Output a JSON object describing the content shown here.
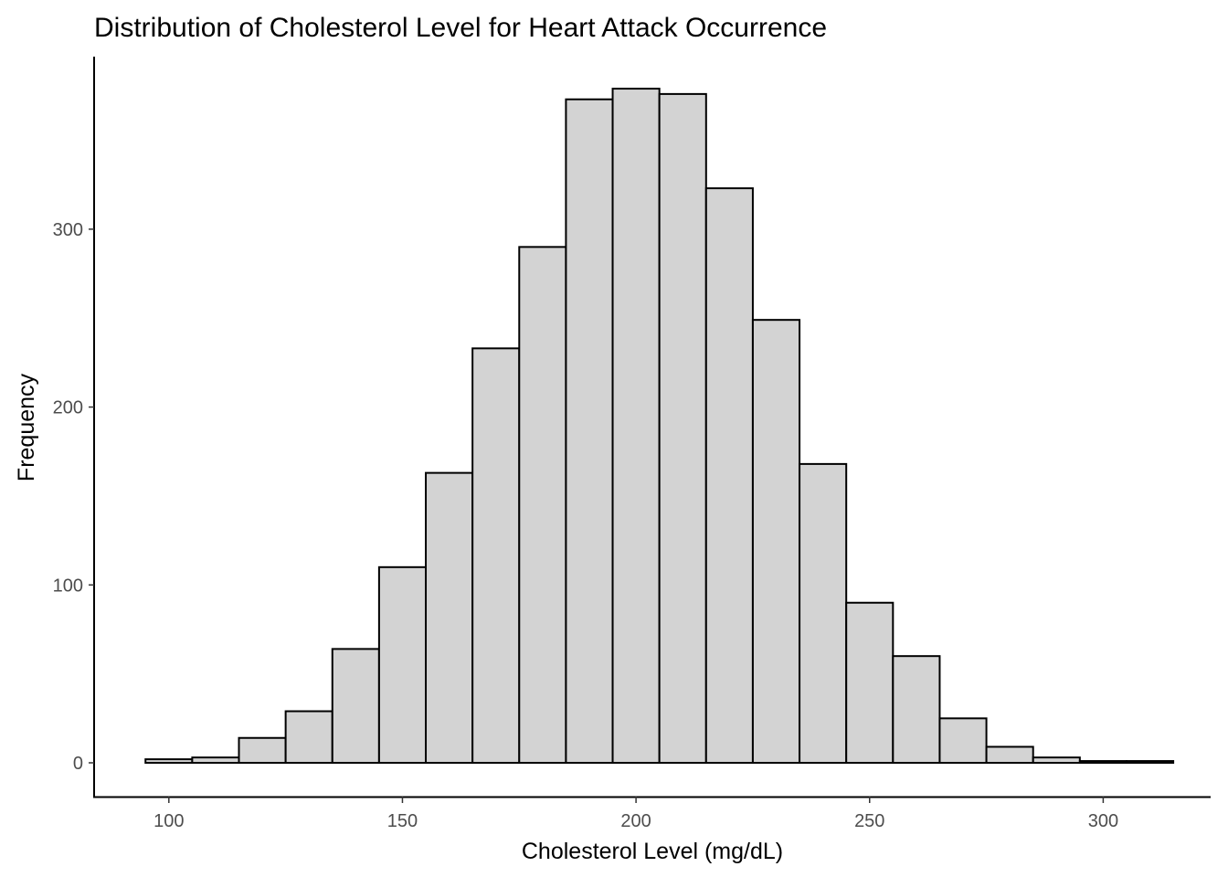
{
  "chart_data": {
    "type": "bar",
    "title": "Distribution of Cholesterol Level for Heart Attack Occurrence",
    "xlabel": "Cholesterol Level (mg/dL)",
    "ylabel": "Frequency",
    "bin_width": 10,
    "bins": [
      {
        "x0": 95,
        "x1": 105,
        "count": 2
      },
      {
        "x0": 105,
        "x1": 115,
        "count": 3
      },
      {
        "x0": 115,
        "x1": 125,
        "count": 14
      },
      {
        "x0": 125,
        "x1": 135,
        "count": 29
      },
      {
        "x0": 135,
        "x1": 145,
        "count": 64
      },
      {
        "x0": 145,
        "x1": 155,
        "count": 110
      },
      {
        "x0": 155,
        "x1": 165,
        "count": 163
      },
      {
        "x0": 165,
        "x1": 175,
        "count": 233
      },
      {
        "x0": 175,
        "x1": 185,
        "count": 290
      },
      {
        "x0": 185,
        "x1": 195,
        "count": 373
      },
      {
        "x0": 195,
        "x1": 205,
        "count": 379
      },
      {
        "x0": 205,
        "x1": 215,
        "count": 376
      },
      {
        "x0": 215,
        "x1": 225,
        "count": 323
      },
      {
        "x0": 225,
        "x1": 235,
        "count": 249
      },
      {
        "x0": 235,
        "x1": 245,
        "count": 168
      },
      {
        "x0": 245,
        "x1": 255,
        "count": 90
      },
      {
        "x0": 255,
        "x1": 265,
        "count": 60
      },
      {
        "x0": 265,
        "x1": 275,
        "count": 25
      },
      {
        "x0": 275,
        "x1": 285,
        "count": 9
      },
      {
        "x0": 285,
        "x1": 295,
        "count": 3
      },
      {
        "x0": 295,
        "x1": 305,
        "count": 1
      },
      {
        "x0": 305,
        "x1": 315,
        "count": 1
      }
    ],
    "xlim": [
      84,
      323
    ],
    "ylim": [
      -19,
      397
    ],
    "x_ticks": [
      100,
      150,
      200,
      250,
      300
    ],
    "y_ticks": [
      0,
      100,
      200,
      300
    ],
    "grid": false,
    "legend": "none",
    "colors": {
      "bar_fill": "#d3d3d3",
      "bar_stroke": "#000000",
      "tick_label": "#4d4d4d"
    }
  }
}
